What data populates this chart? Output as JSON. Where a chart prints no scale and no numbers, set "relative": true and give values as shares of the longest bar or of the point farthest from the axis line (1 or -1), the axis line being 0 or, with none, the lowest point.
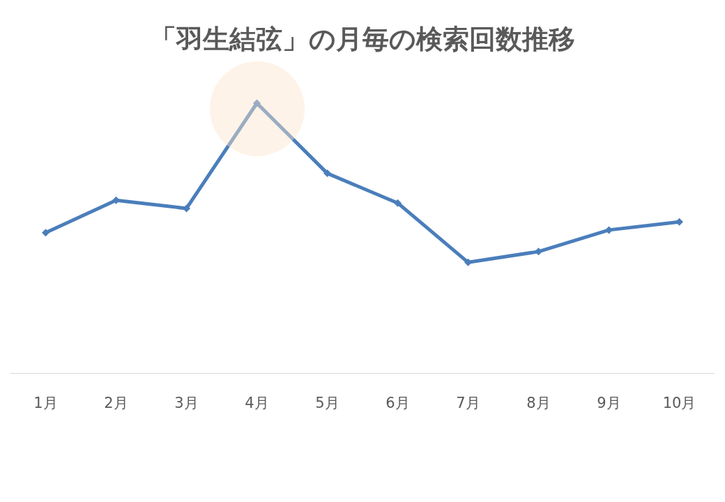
{
  "chart_data": {
    "type": "line",
    "title": "「羽生結弦」の月毎の検索回数推移",
    "categories": [
      "1月",
      "2月",
      "3月",
      "4月",
      "5月",
      "6月",
      "7月",
      "8月",
      "9月",
      "10月"
    ],
    "series": [
      {
        "color": "#4a7ebb",
        "values": [
          0.52,
          0.64,
          0.61,
          1,
          0.74,
          0.63,
          0.41,
          0.45,
          0.53,
          0.56
        ]
      }
    ],
    "relative": true,
    "marker": "diamond"
  }
}
